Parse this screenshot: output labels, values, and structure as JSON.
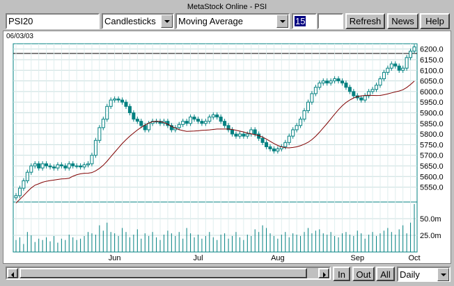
{
  "window": {
    "title": "MetaStock Online - PSI"
  },
  "toolbar": {
    "symbol_value": "PSI20",
    "chart_style": "Candlesticks",
    "indicator": "Moving Average",
    "period_value": "15",
    "refresh_label": "Refresh",
    "news_label": "News",
    "help_label": "Help"
  },
  "chart": {
    "date_label": "06/03/03"
  },
  "bottombar": {
    "in_label": "In",
    "out_label": "Out",
    "all_label": "All",
    "interval": "Daily"
  },
  "chart_data": {
    "type": "candlestick",
    "price_axis_ticks": [
      "6200.0",
      "6150.0",
      "6100.0",
      "6050.0",
      "6000.0",
      "5950.0",
      "5900.0",
      "5850.0",
      "5800.0",
      "5750.0",
      "5700.0",
      "5650.0",
      "5600.0",
      "5550.0"
    ],
    "price_range": [
      5480,
      6225
    ],
    "volume_axis_ticks": [
      "50.0m",
      "25.0m"
    ],
    "volume_range": [
      0,
      75
    ],
    "month_labels": [
      "Jun",
      "Jul",
      "Aug",
      "Sep",
      "Oct"
    ],
    "close_series": [
      5510,
      5545,
      5580,
      5620,
      5650,
      5660,
      5640,
      5660,
      5650,
      5645,
      5640,
      5655,
      5650,
      5640,
      5660,
      5650,
      5650,
      5645,
      5655,
      5660,
      5700,
      5770,
      5830,
      5870,
      5930,
      5960,
      5965,
      5960,
      5950,
      5930,
      5900,
      5870,
      5860,
      5840,
      5820,
      5850,
      5860,
      5860,
      5850,
      5860,
      5840,
      5820,
      5830,
      5845,
      5860,
      5850,
      5880,
      5870,
      5860,
      5850,
      5860,
      5880,
      5890,
      5880,
      5860,
      5840,
      5820,
      5800,
      5790,
      5800,
      5790,
      5800,
      5820,
      5800,
      5780,
      5760,
      5740,
      5730,
      5720,
      5730,
      5740,
      5760,
      5790,
      5820,
      5840,
      5870,
      5910,
      5950,
      5990,
      6020,
      6040,
      6050,
      6040,
      6050,
      6060,
      6050,
      6040,
      6020,
      6000,
      5980,
      5970,
      5960,
      5980,
      6000,
      6010,
      6030,
      6060,
      6090,
      6110,
      6130,
      6120,
      6100,
      6110,
      6160,
      6190,
      6210
    ],
    "moving_average_period": 15,
    "volume_series": [
      18,
      22,
      12,
      30,
      25,
      15,
      20,
      18,
      22,
      16,
      24,
      14,
      20,
      18,
      26,
      22,
      18,
      20,
      24,
      30,
      28,
      26,
      40,
      32,
      44,
      30,
      28,
      24,
      36,
      30,
      22,
      26,
      34,
      20,
      28,
      24,
      30,
      22,
      18,
      26,
      32,
      28,
      24,
      30,
      20,
      36,
      28,
      22,
      26,
      20,
      24,
      30,
      22,
      18,
      26,
      28,
      20,
      24,
      30,
      22,
      18,
      26,
      24,
      34,
      30,
      40,
      36,
      28,
      24,
      20,
      26,
      30,
      22,
      28,
      26,
      24,
      30,
      36,
      28,
      32,
      34,
      28,
      26,
      30,
      24,
      22,
      28,
      30,
      26,
      24,
      32,
      28,
      20,
      26,
      30,
      24,
      28,
      32,
      36,
      30,
      26,
      34,
      40,
      28,
      44,
      72
    ]
  }
}
